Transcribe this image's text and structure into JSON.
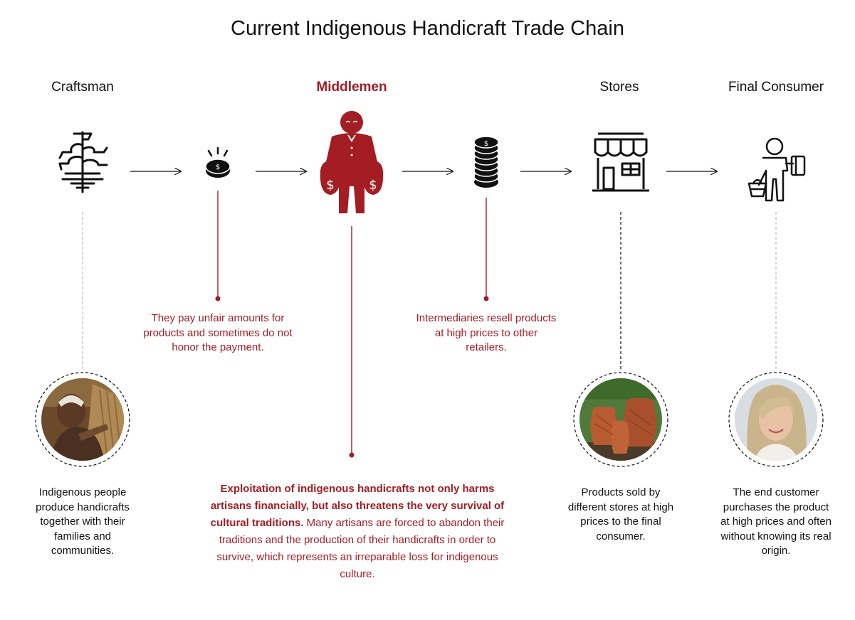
{
  "title": "Current Indigenous Handicraft Trade Chain",
  "stages": {
    "craftsman": "Craftsman",
    "middlemen": "Middlemen",
    "stores": "Stores",
    "consumer": "Final Consumer"
  },
  "notes": {
    "unfair_payment": "They pay unfair amounts for products and sometimes do not honor the payment.",
    "resell": "Intermediaries resell products at high prices to other retailers."
  },
  "descriptions": {
    "craftsman": "Indigenous people produce handicrafts together with their families and communities.",
    "stores": "Products sold by different stores at high prices to the final consumer.",
    "consumer": "The end customer purchases the product at high prices and often without knowing its real origin."
  },
  "exploitation": {
    "bold": "Exploitation of indigenous handicrafts not only harms artisans financially, but also threatens the very survival of cultural traditions.",
    "regular": " Many artisans are forced to abandon their traditions and the production of their handicrafts in order to survive, which represents an irreparable loss for indigenous culture."
  },
  "icons": {
    "craftsman": "loom-icon",
    "payment": "coin-icon",
    "middlemen": "middleman-with-money-bags-icon",
    "resale": "coin-stack-icon",
    "stores": "storefront-icon",
    "consumer": "shopper-with-basket-icon"
  },
  "colors": {
    "accent": "#a31d23",
    "text": "#111111"
  }
}
